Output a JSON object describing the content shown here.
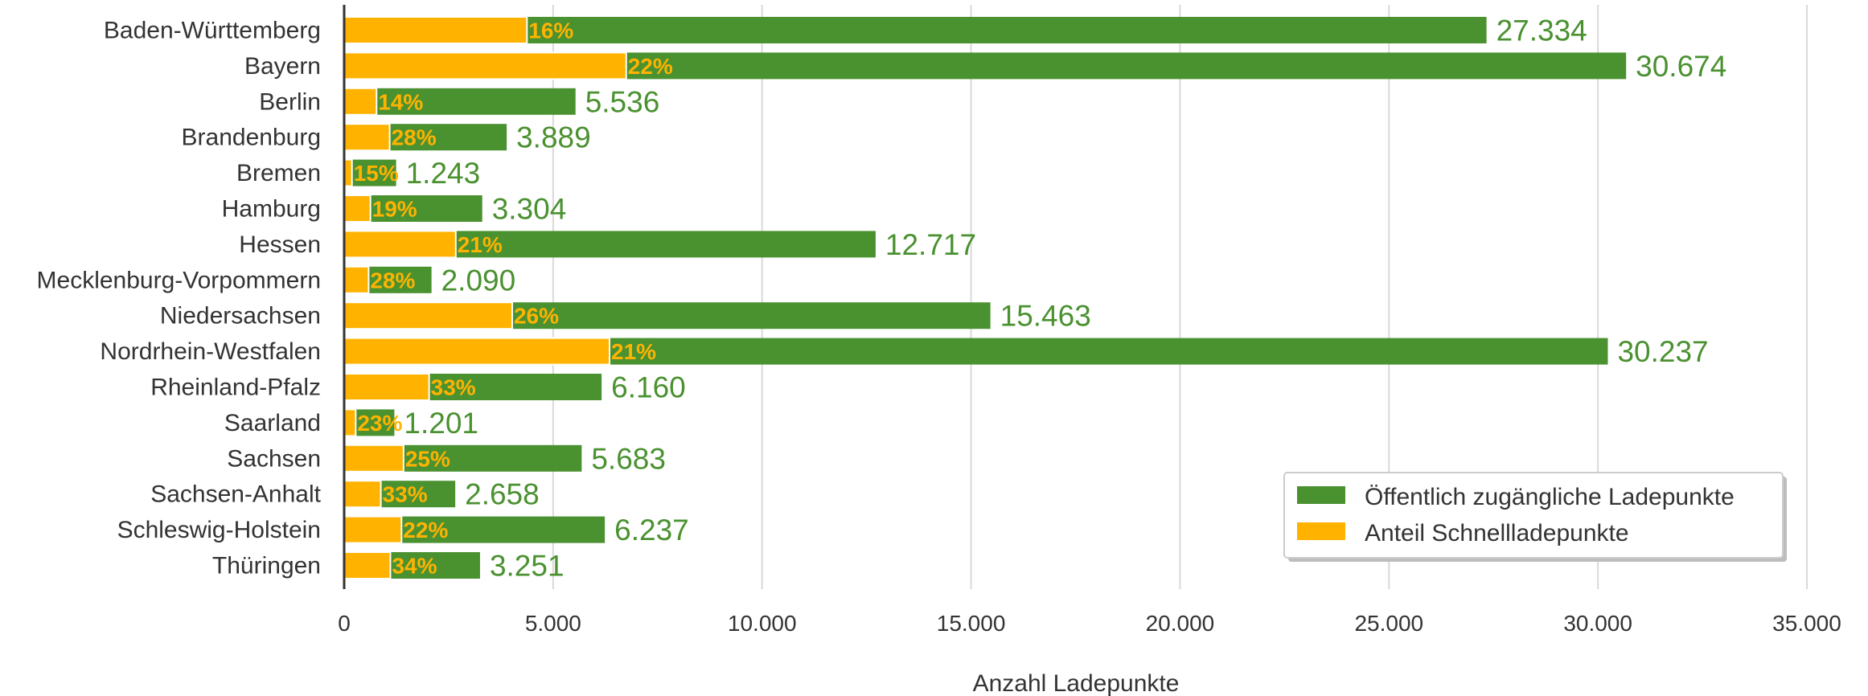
{
  "chart_data": {
    "type": "bar",
    "orientation": "horizontal",
    "stacked_overlay": true,
    "categories": [
      "Baden-Württemberg",
      "Bayern",
      "Berlin",
      "Brandenburg",
      "Bremen",
      "Hamburg",
      "Hessen",
      "Mecklenburg-Vorpommern",
      "Niedersachsen",
      "Nordrhein-Westfalen",
      "Rheinland-Pfalz",
      "Saarland",
      "Sachsen",
      "Sachsen-Anhalt",
      "Schleswig-Holstein",
      "Thüringen"
    ],
    "series": [
      {
        "name": "Öffentlich zugängliche Ladepunkte",
        "color": "#4a9130",
        "values": [
          27334,
          30674,
          5536,
          3889,
          1243,
          3304,
          12717,
          2090,
          15463,
          30237,
          6160,
          1201,
          5683,
          2658,
          6237,
          3251
        ],
        "value_labels": [
          "27.334",
          "30.674",
          "5.536",
          "3.889",
          "1.243",
          "3.304",
          "12.717",
          "2.090",
          "15.463",
          "30.237",
          "6.160",
          "1.201",
          "5.683",
          "2.658",
          "6.237",
          "3.251"
        ]
      },
      {
        "name": "Anteil Schnellladepunkte",
        "color": "#ffb300",
        "percent": [
          16,
          22,
          14,
          28,
          15,
          19,
          21,
          28,
          26,
          21,
          33,
          23,
          25,
          33,
          22,
          34
        ],
        "percent_labels": [
          "16%",
          "22%",
          "14%",
          "28%",
          "15%",
          "19%",
          "21%",
          "28%",
          "26%",
          "21%",
          "33%",
          "23%",
          "25%",
          "33%",
          "22%",
          "34%"
        ]
      }
    ],
    "xlabel": "Anzahl Ladepunkte",
    "ylabel": "",
    "xlim": [
      0,
      35000
    ],
    "xticks": [
      0,
      5000,
      10000,
      15000,
      20000,
      25000,
      30000,
      35000
    ],
    "xtick_labels": [
      "0",
      "5.000",
      "10.000",
      "15.000",
      "20.000",
      "25.000",
      "30.000",
      "35.000"
    ],
    "grid": "vertical",
    "legend_position": "lower-right",
    "colors": {
      "axis": "#333333",
      "grid": "#d9d9d9",
      "value_text": "#4a9130",
      "percent_text": "#ffb300"
    }
  }
}
